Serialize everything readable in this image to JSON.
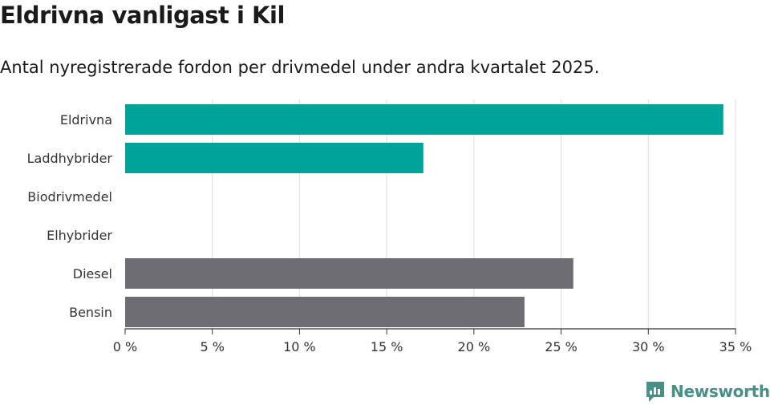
{
  "header": {
    "title": "Eldrivna vanligast i Kil",
    "subtitle": "Antal nyregistrerade fordon per drivmedel under andra kvartalet 2025."
  },
  "brand": {
    "name": "Newsworthy",
    "icon": "newsworthy-logo-icon",
    "color": "#4a8f86"
  },
  "colors": {
    "electric": "#00a39a",
    "fossil": "#6e6d73",
    "grid": "#dddddd",
    "axis": "#333333"
  },
  "chart_data": {
    "type": "bar",
    "orientation": "horizontal",
    "categories": [
      "Eldrivna",
      "Laddhybrider",
      "Biodrivmedel",
      "Elhybrider",
      "Diesel",
      "Bensin"
    ],
    "values": [
      34.3,
      17.1,
      0,
      0,
      25.7,
      22.9
    ],
    "bar_colors": [
      "#00a39a",
      "#00a39a",
      "#00a39a",
      "#00a39a",
      "#6e6d73",
      "#6e6d73"
    ],
    "xlim": [
      0,
      35
    ],
    "xticks": [
      0,
      5,
      10,
      15,
      20,
      25,
      30,
      35
    ],
    "xtick_labels": [
      "0 %",
      "5 %",
      "10 %",
      "15 %",
      "20 %",
      "25 %",
      "30 %",
      "35 %"
    ],
    "grid": true,
    "legend": false
  }
}
